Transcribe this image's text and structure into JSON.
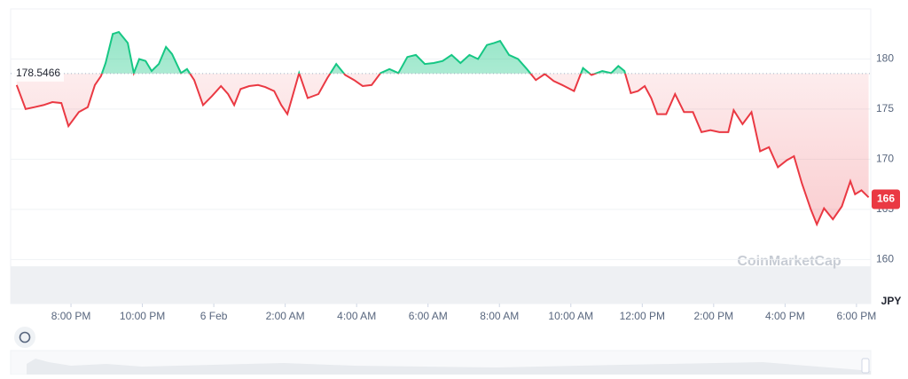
{
  "chart_data": {
    "type": "line",
    "x": [
      -5.52,
      -5.27,
      -5.02,
      -4.77,
      -4.52,
      -4.27,
      -4.07,
      -3.78,
      -3.53,
      -3.33,
      -3.16,
      -3.03,
      -2.83,
      -2.66,
      -2.41,
      -2.24,
      -2.09,
      -1.91,
      -1.74,
      -1.54,
      -1.34,
      -1.17,
      -0.92,
      -0.75,
      -0.55,
      -0.3,
      -0.05,
      0.2,
      0.4,
      0.57,
      0.75,
      0.99,
      1.24,
      1.44,
      1.69,
      1.89,
      2.06,
      2.19,
      2.39,
      2.63,
      2.93,
      3.18,
      3.43,
      3.68,
      3.93,
      4.17,
      4.42,
      4.67,
      4.92,
      5.17,
      5.42,
      5.66,
      5.91,
      6.16,
      6.41,
      6.66,
      6.91,
      7.16,
      7.4,
      7.65,
      7.85,
      8.02,
      8.27,
      8.52,
      8.77,
      9.02,
      9.27,
      9.52,
      9.76,
      10.09,
      10.34,
      10.58,
      10.88,
      11.13,
      11.33,
      11.5,
      11.68,
      11.88,
      12.07,
      12.25,
      12.42,
      12.67,
      12.92,
      13.17,
      13.42,
      13.66,
      13.91,
      14.16,
      14.41,
      14.56,
      14.81,
      15.06,
      15.3,
      15.55,
      15.8,
      16.05,
      16.25,
      16.47,
      16.72,
      16.89,
      17.09,
      17.34,
      17.59,
      17.83,
      17.96,
      18.14,
      18.34
    ],
    "series": [
      {
        "name": "JPY",
        "color_up": "#16c784",
        "color_down": "#ea3943",
        "values": [
          177.4,
          175.0,
          175.2,
          175.4,
          175.7,
          175.6,
          173.3,
          174.7,
          175.2,
          177.4,
          178.3,
          179.6,
          182.5,
          182.7,
          181.6,
          178.6,
          180.0,
          179.8,
          178.8,
          179.5,
          181.2,
          180.5,
          178.6,
          179.0,
          177.9,
          175.4,
          176.3,
          177.3,
          176.5,
          175.4,
          177.0,
          177.3,
          177.4,
          177.2,
          176.8,
          175.4,
          174.5,
          176.1,
          178.6,
          176.1,
          176.5,
          178.1,
          179.5,
          178.4,
          177.9,
          177.3,
          177.4,
          178.6,
          179.0,
          178.6,
          180.2,
          180.4,
          179.5,
          179.6,
          179.8,
          180.4,
          179.6,
          180.4,
          180.0,
          181.4,
          181.6,
          181.8,
          180.4,
          180.0,
          179.0,
          177.9,
          178.5,
          177.8,
          177.4,
          176.8,
          179.1,
          178.4,
          178.8,
          178.6,
          179.3,
          178.8,
          176.6,
          176.8,
          177.3,
          176.1,
          174.5,
          174.5,
          176.5,
          174.7,
          174.7,
          172.7,
          172.9,
          172.7,
          172.7,
          174.9,
          173.5,
          174.7,
          170.8,
          171.2,
          169.2,
          169.9,
          170.3,
          167.6,
          165.0,
          163.5,
          165.1,
          164.0,
          165.3,
          167.8,
          166.5,
          166.9,
          166.2
        ]
      }
    ],
    "baseline": 178.5466,
    "current_price": 166,
    "y_axis_label": "JPY",
    "watermark": "CoinMarketCap",
    "xlim": [
      -5.69,
      18.4
    ],
    "ylim": [
      155.6,
      185
    ],
    "yticks": [
      160,
      165,
      170,
      175,
      180
    ],
    "xticks": [
      {
        "value": -4,
        "label": "8:00 PM"
      },
      {
        "value": -2,
        "label": "10:00 PM"
      },
      {
        "value": 0,
        "label": "6 Feb"
      },
      {
        "value": 2,
        "label": "2:00 AM"
      },
      {
        "value": 4,
        "label": "4:00 AM"
      },
      {
        "value": 6,
        "label": "6:00 AM"
      },
      {
        "value": 8,
        "label": "8:00 AM"
      },
      {
        "value": 10,
        "label": "10:00 AM"
      },
      {
        "value": 12,
        "label": "12:00 PM"
      },
      {
        "value": 14,
        "label": "2:00 PM"
      },
      {
        "value": 16,
        "label": "4:00 PM"
      },
      {
        "value": 18,
        "label": "6:00 PM"
      }
    ],
    "grid": true
  }
}
